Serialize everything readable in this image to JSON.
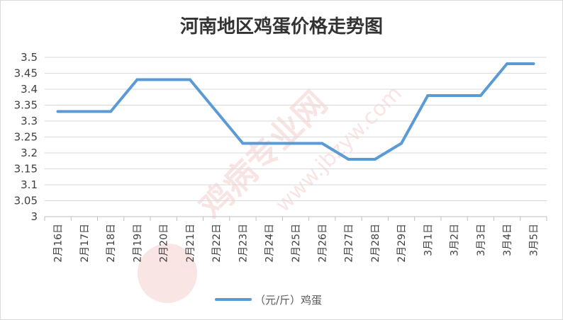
{
  "chart_data": {
    "type": "line",
    "title": "河南地区鸡蛋价格走势图",
    "categories": [
      "2月16日",
      "2月17日",
      "2月18日",
      "2月19日",
      "2月20日",
      "2月21日",
      "2月22日",
      "2月23日",
      "2月24日",
      "2月25日",
      "2月26日",
      "2月27日",
      "2月28日",
      "2月29日",
      "3月1日",
      "3月2日",
      "3月3日",
      "3月4日",
      "3月5日"
    ],
    "series": [
      {
        "name": "（元/斤）鸡蛋",
        "color": "#5b9bd5",
        "values": [
          3.33,
          3.33,
          3.33,
          3.43,
          3.43,
          3.43,
          3.33,
          3.23,
          3.23,
          3.23,
          3.23,
          3.18,
          3.18,
          3.23,
          3.38,
          3.38,
          3.38,
          3.48,
          3.48
        ]
      }
    ],
    "yticks": [
      "3",
      "3.05",
      "3.1",
      "3.15",
      "3.2",
      "3.25",
      "3.3",
      "3.35",
      "3.4",
      "3.45",
      "3.5"
    ],
    "ylim": [
      3,
      3.5
    ],
    "grid": true,
    "legend_position": "bottom",
    "xlabel": "",
    "ylabel": ""
  },
  "watermark": {
    "text": "鸡病专业网",
    "url": "www.jbzyw.com",
    "color": "#e06060"
  }
}
